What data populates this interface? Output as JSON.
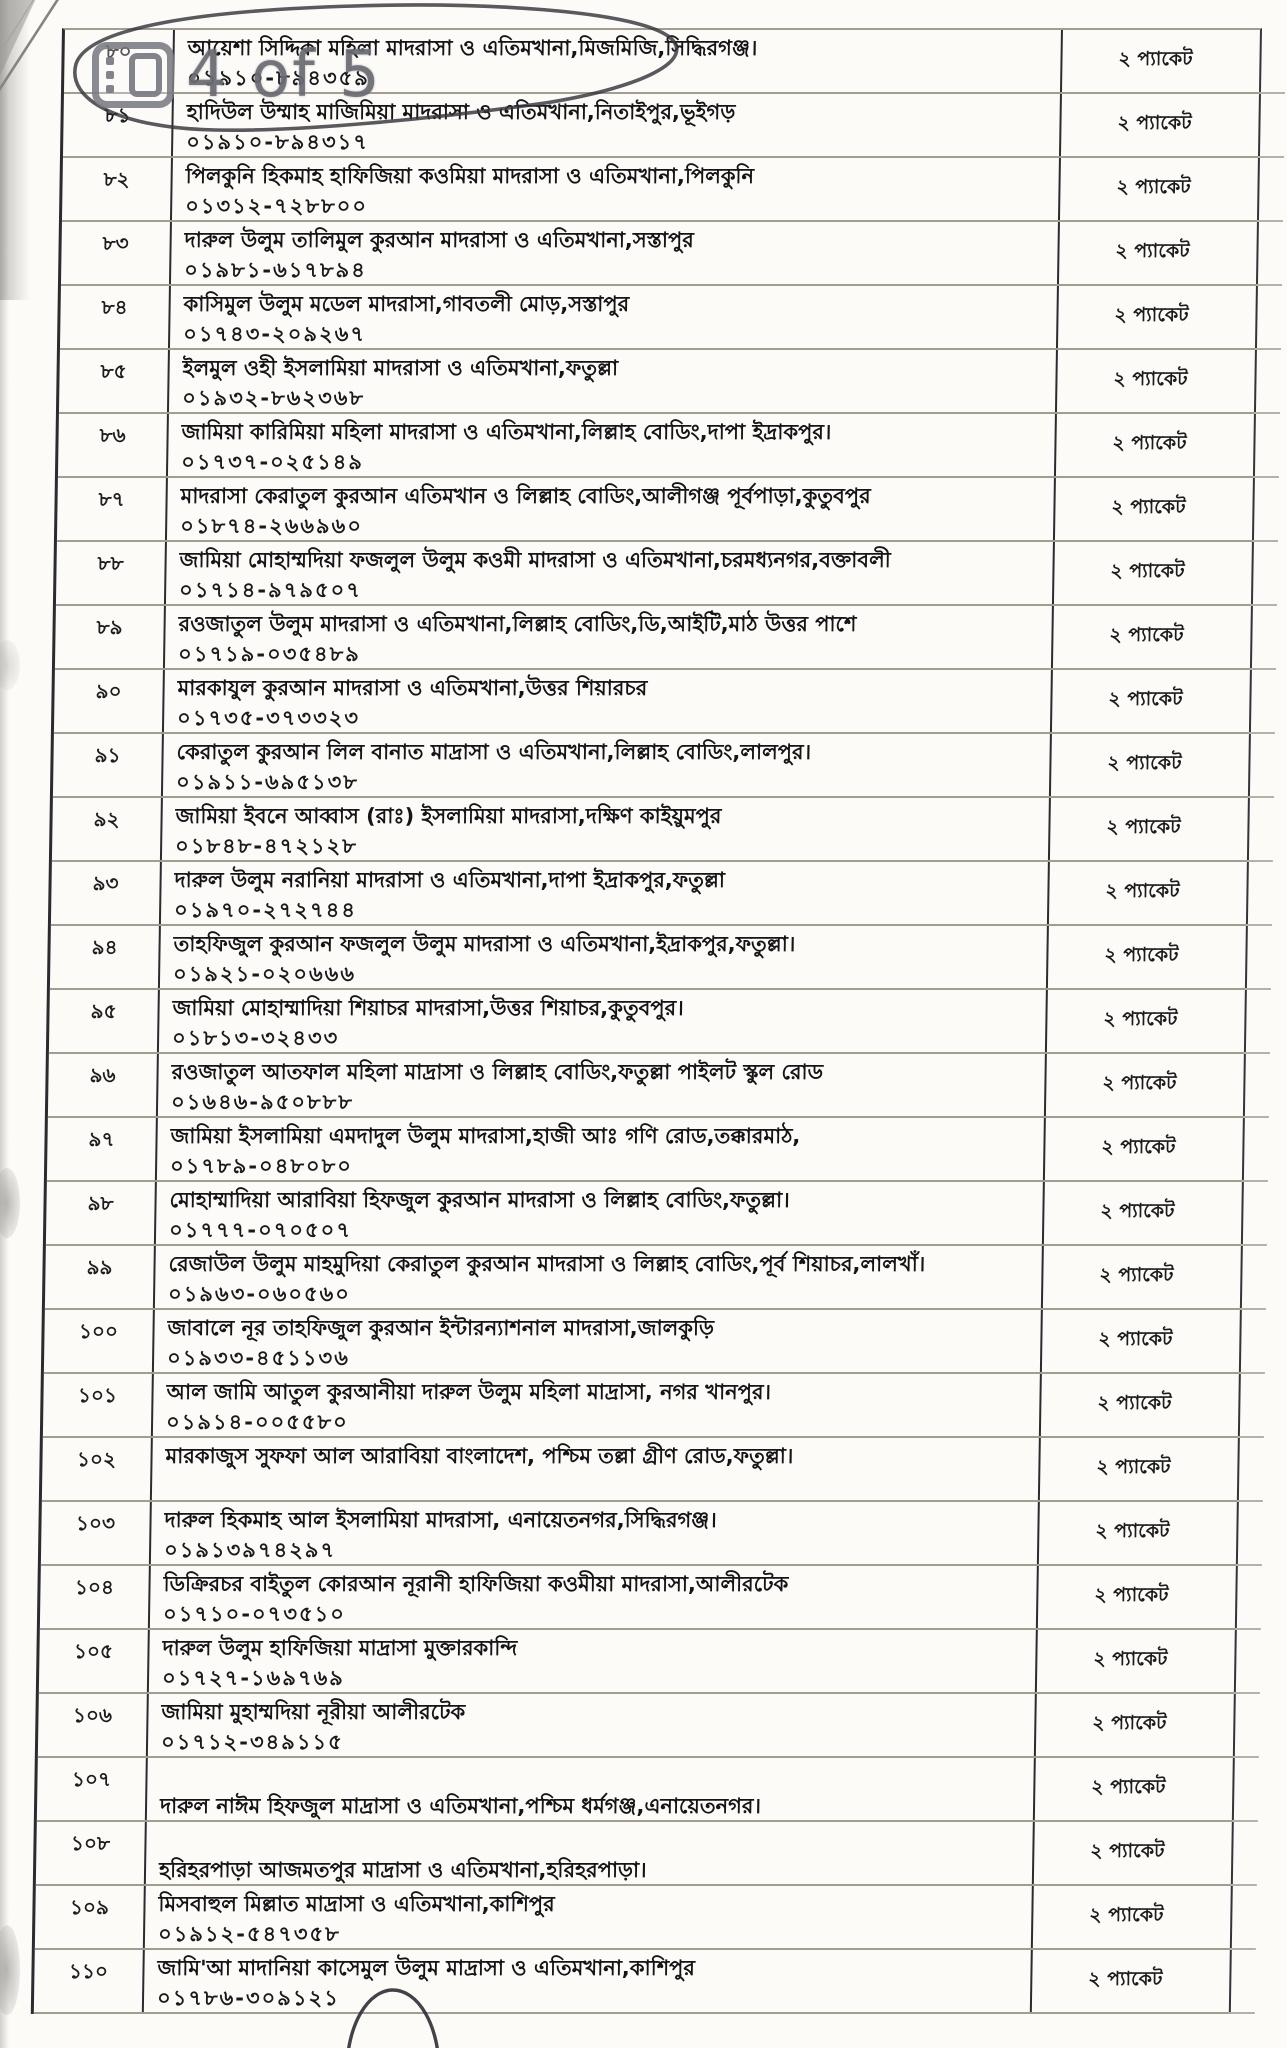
{
  "viewer": {
    "page_indicator": "4 of 5",
    "icon": "page-layout-icon"
  },
  "table": {
    "rows": [
      {
        "serial": "৮০",
        "name": "আয়েশা সিদ্দিকা মহিলা মাদরাসা ও এতিমখানা,মিজমিজি,সিদ্ধিরগঞ্জ।",
        "phone": "০১৯১০-৮৯৪৩৫৯",
        "packets": "২ প্যাকেট"
      },
      {
        "serial": "৮১",
        "name": "হাদিউল উম্মাহ মাজিমিয়া মাদরাসা ও এতিমখানা,নিতাইপুর,ভূইগড়",
        "phone": "০১৯১০-৮৯৪৩১৭",
        "packets": "২ প্যাকেট"
      },
      {
        "serial": "৮২",
        "name": "পিলকুনি হিকমাহ হাফিজিয়া কওমিয়া মাদরাসা ও এতিমখানা,পিলকুনি",
        "phone": "০১৩১২-৭২৮৮০০",
        "packets": "২ প্যাকেট"
      },
      {
        "serial": "৮৩",
        "name": "দারুল উলুম তালিমুল কুরআন মাদরাসা ও এতিমখানা,সস্তাপুর",
        "phone": "০১৯৮১-৬১৭৮৯৪",
        "packets": "২ প্যাকেট"
      },
      {
        "serial": "৮৪",
        "name": "কাসিমুল উলুম মডেল মাদরাসা,গাবতলী মোড়,সস্তাপুর",
        "phone": "০১৭৪৩-২০৯২৬৭",
        "packets": "২ প্যাকেট"
      },
      {
        "serial": "৮৫",
        "name": "ইলমুল ওহী ইসলামিয়া মাদরাসা ও এতিমখানা,ফতুল্লা",
        "phone": "০১৯৩২-৮৬২৩৬৮",
        "packets": "২ প্যাকেট"
      },
      {
        "serial": "৮৬",
        "name": "জামিয়া কারিমিয়া মহিলা মাদরাসা ও এতিমখানা,লিল্লাহ বোডিং,দাপা ইদ্রাকপুর।",
        "phone": "০১৭৩৭-০২৫১৪৯",
        "packets": "২ প্যাকেট"
      },
      {
        "serial": "৮৭",
        "name": "মাদরাসা কেরাতুল কুরআন এতিমখান ও লিল্লাহ বোডিং,আলীগঞ্জ পূর্বপাড়া,কুতুবপুর",
        "phone": "০১৮৭৪-২৬৬৯৬০",
        "packets": "২ প্যাকেট"
      },
      {
        "serial": "৮৮",
        "name": "জামিয়া মোহাম্মদিয়া ফজলুল উলুম কওমী মাদরাসা ও এতিমখানা,চরমধ্যনগর,বক্তাবলী",
        "phone": "০১৭১৪-৯৭৯৫০৭",
        "packets": "২ প্যাকেট"
      },
      {
        "serial": "৮৯",
        "name": "রওজাতুল উলুম মাদরাসা ও এতিমখানা,লিল্লাহ বোডিং,ডি,আইটি,মাঠ উত্তর পাশে",
        "phone": "০১৭১৯-০৩৫৪৮৯",
        "packets": "২ প্যাকেট"
      },
      {
        "serial": "৯০",
        "name": "মারকাযুল কুরআন মাদরাসা ও এতিমখানা,উত্তর শিয়ারচর",
        "phone": "০১৭৩৫-৩৭৩৩২৩",
        "packets": "২ প্যাকেট"
      },
      {
        "serial": "৯১",
        "name": "কেরাতুল কুরআন লিল বানাত মাদ্রাসা ও এতিমখানা,লিল্লাহ বোডিং,লালপুর।",
        "phone": "০১৯১১-৬৯৫১৩৮",
        "packets": "২ প্যাকেট"
      },
      {
        "serial": "৯২",
        "name": "জামিয়া ইবনে আব্বাস (রাঃ) ইসলামিয়া মাদরাসা,দক্ষিণ কাইয়ুমপুর",
        "phone": "০১৮৪৮-৪৭২১২৮",
        "packets": "২ প্যাকেট"
      },
      {
        "serial": "৯৩",
        "name": "দারুল উলুম নরানিয়া মাদরাসা ও এতিমখানা,দাপা ইদ্রাকপুর,ফতুল্লা",
        "phone": "০১৯৭০-২৭২৭৪৪",
        "packets": "২ প্যাকেট"
      },
      {
        "serial": "৯৪",
        "name": "তাহফিজুল কুরআন ফজলুল উলুম মাদরাসা ও এতিমখানা,ইদ্রাকপুর,ফতুল্লা।",
        "phone": "০১৯২১-০২০৬৬৬",
        "packets": "২ প্যাকেট"
      },
      {
        "serial": "৯৫",
        "name": "জামিয়া মোহাম্মাদিয়া শিয়াচর মাদরাসা,উত্তর শিয়াচর,কুতুবপুর।",
        "phone": "০১৮১৩-৩২৪৩৩",
        "packets": "২ প্যাকেট"
      },
      {
        "serial": "৯৬",
        "name": "রওজাতুল আতফাল মহিলা মাদ্রাসা ও লিল্লাহ বোডিং,ফতুল্লা পাইলট স্কুল রোড",
        "phone": "০১৬৪৬-৯৫০৮৮৮",
        "packets": "২ প্যাকেট"
      },
      {
        "serial": "৯৭",
        "name": "জামিয়া ইসলামিয়া এমদাদুল উলুম মাদরাসা,হাজী আঃ গণি রোড,তক্কারমাঠ,",
        "phone": "০১৭৮৯-০৪৮০৮০",
        "packets": "২ প্যাকেট"
      },
      {
        "serial": "৯৮",
        "name": "মোহাম্মাদিয়া আরাবিয়া হিফজুল কুরআন মাদরাসা ও লিল্লাহ বোডিং,ফতুল্লা।",
        "phone": "০১৭৭৭-০৭০৫০৭",
        "packets": "২ প্যাকেট"
      },
      {
        "serial": "৯৯",
        "name": "রেজাউল উলুম মাহমুদিয়া কেরাতুল কুরআন মাদরাসা ও লিল্লাহ বোডিং,পূর্ব শিয়াচর,লালখাঁ।",
        "phone": "০১৯৬৩-০৬০৫৬০",
        "packets": "২ প্যাকেট"
      },
      {
        "serial": "১০০",
        "name": "জাবালে নূর তাহফিজুল কুরআন ইন্টারন্যাশনাল মাদরাসা,জালকুড়ি",
        "phone": "০১৯৩৩-৪৫১১৩৬",
        "packets": "২ প্যাকেট"
      },
      {
        "serial": "১০১",
        "name": "আল জামি আতুল কুরআনীয়া দারুল উলুম মহিলা মাদ্রাসা, নগর খানপুর।",
        "phone": "০১৯১৪-০০৫৫৮০",
        "packets": "২ প্যাকেট"
      },
      {
        "serial": "১০২",
        "name": "মারকাজুস সুফফা আল আরাবিয়া বাংলাদেশ, পশ্চিম তল্লা গ্রীণ রোড,ফতুল্লা।",
        "phone": "",
        "packets": "২ প্যাকেট",
        "variant": "no-phone"
      },
      {
        "serial": "১০৩",
        "name": "দারুল হিকমাহ আল ইসলামিয়া মাদরাসা, এনায়েতনগর,সিদ্ধিরগঞ্জ।",
        "phone": "০১৯১৩৯৭৪২৯৭",
        "packets": "২ প্যাকেট"
      },
      {
        "serial": "১০৪",
        "name": "ডিক্রিরচর বাইতুল কোরআন নূরানী হাফিজিয়া কওমীয়া মাদরাসা,আলীরটেক",
        "phone": "০১৭১০-০৭৩৫১০",
        "packets": "২ প্যাকেট"
      },
      {
        "serial": "১০৫",
        "name": "দারুল উলুম হাফিজিয়া মাদ্রাসা মুক্তারকান্দি",
        "phone": "০১৭২৭-১৬৯৭৬৯",
        "packets": "২ প্যাকেট"
      },
      {
        "serial": "১০৬",
        "name": "জামিয়া মুহাম্মদিয়া নূরীয়া আলীরটেক",
        "phone": "০১৭১২-৩৪৯১১৫",
        "packets": "২ প্যাকেট"
      },
      {
        "serial": "১০৭",
        "name": "দারুল নাঈম হিফজুল মাদ্রাসা ও এতিমখানা,পশ্চিম ধর্মগঞ্জ,এনায়েতনগর।",
        "phone": "",
        "packets": "২ প্যাকেট",
        "variant": "low-name"
      },
      {
        "serial": "১০৮",
        "name": "হরিহরপাড়া আজমতপুর মাদ্রাসা ও এতিমখানা,হরিহরপাড়া।",
        "phone": "",
        "packets": "২ প্যাকেট",
        "variant": "low-name"
      },
      {
        "serial": "১০৯",
        "name": "মিসবাহুল মিল্লাত মাদ্রাসা ও এতিমখানা,কাশিপুর",
        "phone": "০১৯১২-৫৪৭৩৫৮",
        "packets": "২ প্যাকেট"
      },
      {
        "serial": "১১০",
        "name": "জামি'আ মাদানিয়া কাসেমুল উলুম মাদ্রাসা ও এতিমখানা,কাশিপুর",
        "phone": "০১৭৮৬-৩০৯১২১",
        "packets": "২ প্যাকেট"
      }
    ]
  },
  "annotations": {
    "pen_circle": "hand-drawn ink circle around rows ৮০–৮১",
    "bottom_mark": "top arc of hand-drawn ink circle at page bottom"
  },
  "colors": {
    "ink": "#191919",
    "grid_dark": "#2b2b30",
    "grid_light": "#a29d93",
    "overlay_gray": "#6a6a72"
  }
}
